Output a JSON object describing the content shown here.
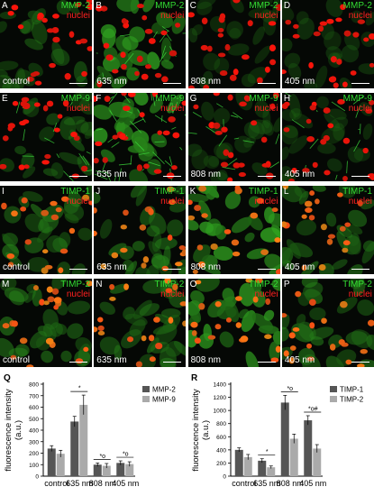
{
  "marker_colors": {
    "marker": "#33dd33",
    "nuclei": "#ff2020"
  },
  "panels": [
    {
      "label": "A",
      "marker": "MMP-2",
      "stain": "nuclei",
      "condition": "control"
    },
    {
      "label": "B",
      "marker": "MMP-2",
      "stain": "nuclei",
      "condition": "635 nm"
    },
    {
      "label": "C",
      "marker": "MMP-2",
      "stain": "nuclei",
      "condition": "808 nm"
    },
    {
      "label": "D",
      "marker": "MMP-2",
      "stain": "nuclei",
      "condition": "405 nm"
    },
    {
      "label": "E",
      "marker": "MMP-9",
      "stain": "nuclei",
      "condition": ""
    },
    {
      "label": "F",
      "marker": "MMP-9",
      "stain": "nuclei",
      "condition": "635 nm"
    },
    {
      "label": "G",
      "marker": "MMP-9",
      "stain": "nuclei",
      "condition": "808 nm"
    },
    {
      "label": "H",
      "marker": "MMP-9",
      "stain": "nuclei",
      "condition": "405 nm"
    },
    {
      "label": "I",
      "marker": "TIMP-1",
      "stain": "nuclei",
      "condition": "control"
    },
    {
      "label": "J",
      "marker": "TIMP-1",
      "stain": "nuclei",
      "condition": "635 nm"
    },
    {
      "label": "K",
      "marker": "TIMP-1",
      "stain": "nuclei",
      "condition": "808 nm"
    },
    {
      "label": "L",
      "marker": "TIMP-1",
      "stain": "nuclei",
      "condition": "405 nm"
    },
    {
      "label": "M",
      "marker": "TIMP-2",
      "stain": "nuclei",
      "condition": "control"
    },
    {
      "label": "N",
      "marker": "TIMP-2",
      "stain": "nuclei",
      "condition": "635 nm"
    },
    {
      "label": "O",
      "marker": "TIMP-2",
      "stain": "nuclei",
      "condition": "808 nm"
    },
    {
      "label": "P",
      "marker": "TIMP-2",
      "stain": "nuclei",
      "condition": "405 nm"
    }
  ],
  "chart_data": [
    {
      "panel_label": "Q",
      "type": "bar",
      "ylabel": "fluorescence intensity\n(a.u.)",
      "ylim": [
        0,
        800
      ],
      "yticks": [
        0,
        100,
        200,
        300,
        400,
        500,
        600,
        700,
        800
      ],
      "categories": [
        "control",
        "635 nm",
        "808 nm",
        "405 nm"
      ],
      "series": [
        {
          "name": "MMP-2",
          "color": "#555555",
          "values": [
            240,
            475,
            100,
            115
          ],
          "errors": [
            25,
            45,
            15,
            18
          ]
        },
        {
          "name": "MMP-9",
          "color": "#aaaaaa",
          "values": [
            195,
            620,
            90,
            105
          ],
          "errors": [
            30,
            85,
            20,
            20
          ]
        }
      ],
      "annotations": [
        {
          "category": "635 nm",
          "text": "*"
        },
        {
          "category": "808 nm",
          "text": "*o"
        },
        {
          "category": "405 nm",
          "text": "*o"
        }
      ],
      "legend_position": "top-right"
    },
    {
      "panel_label": "R",
      "type": "bar",
      "ylabel": "fluorescence intensity\n(a.u.)",
      "ylim": [
        0,
        1400
      ],
      "yticks": [
        0,
        200,
        400,
        600,
        800,
        1000,
        1200,
        1400
      ],
      "categories": [
        "control",
        "635 nm",
        "808 nm",
        "405 nm"
      ],
      "series": [
        {
          "name": "TIMP-1",
          "color": "#555555",
          "values": [
            400,
            235,
            1120,
            850
          ],
          "errors": [
            30,
            30,
            110,
            70
          ]
        },
        {
          "name": "TIMP-2",
          "color": "#aaaaaa",
          "values": [
            290,
            135,
            570,
            420
          ],
          "errors": [
            40,
            20,
            70,
            60
          ]
        }
      ],
      "annotations": [
        {
          "category": "635 nm",
          "text": "*"
        },
        {
          "category": "808 nm",
          "text": "*o"
        },
        {
          "category": "405 nm",
          "text": "*o#"
        }
      ],
      "legend_position": "top-right"
    }
  ]
}
